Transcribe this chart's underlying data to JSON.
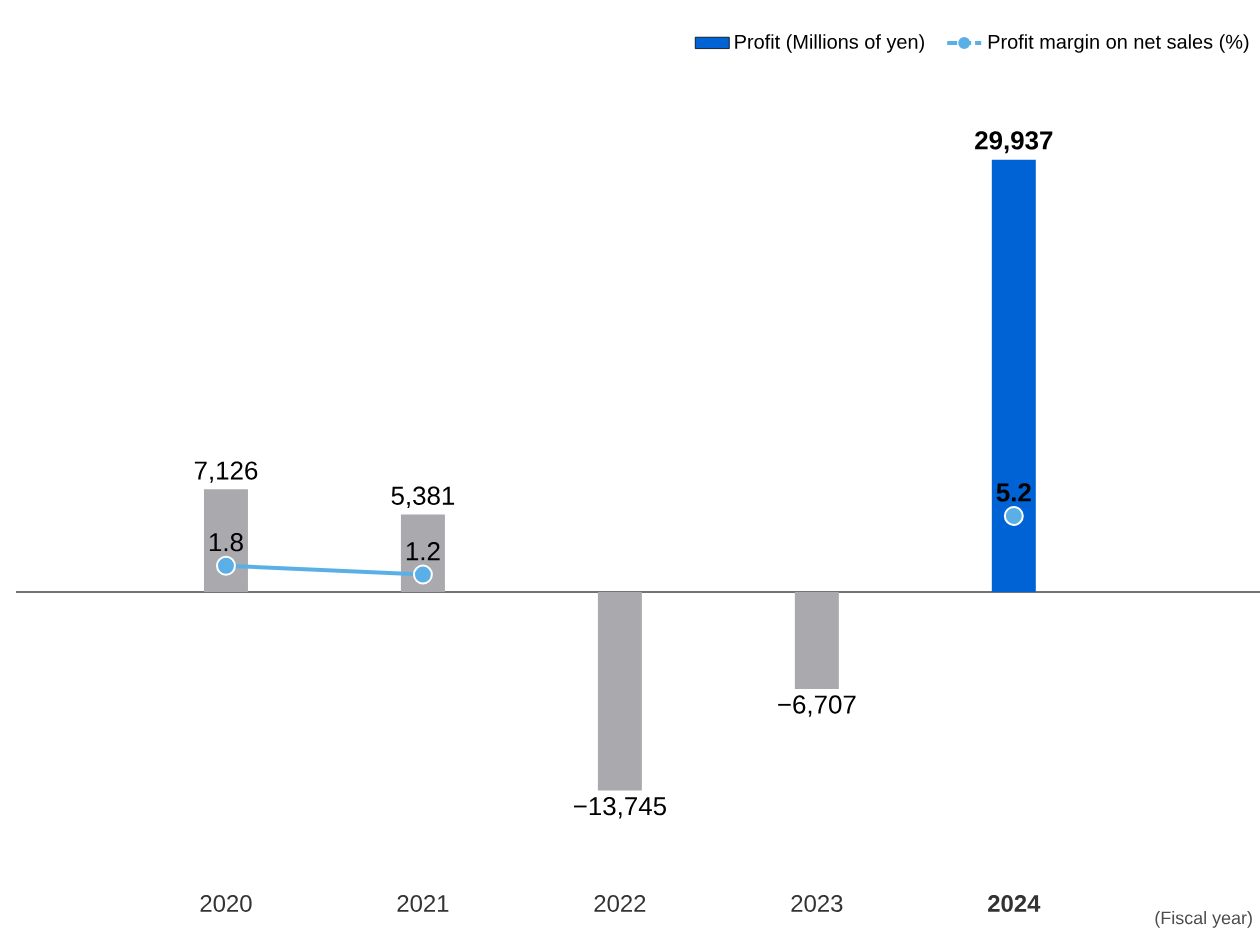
{
  "chart_data": {
    "type": "bar",
    "categories": [
      "2020",
      "2021",
      "2022",
      "2023",
      "**2024**"
    ],
    "xlabel": "(Fiscal year)",
    "data_labels": true,
    "legend": "top right",
    "marker": "circle",
    "line_style": "solid",
    "series": [
      {
        "name": "Profit (Millions of yen)",
        "color": "#0063d5",
        "colors": [
          "#aaa9ad",
          "#aaa9ad",
          "#aaa9ad",
          "#aaa9ad",
          "#0063d5"
        ],
        "values": [
          7126,
          5381,
          -13745,
          -6707,
          29937
        ],
        "value_labels": [
          "7,126",
          "5,381",
          "−13,745",
          "−6,707",
          "**29,937**"
        ]
      },
      {
        "name": "Profit margin on net sales (%)",
        "type": "line",
        "axis": "y2",
        "color": "#5ab0e6",
        "values": [
          1.8,
          1.2,
          null,
          null,
          5.2
        ],
        "value_labels": [
          "1.8",
          "1.2",
          null,
          null,
          "**5.2**"
        ]
      }
    ]
  }
}
